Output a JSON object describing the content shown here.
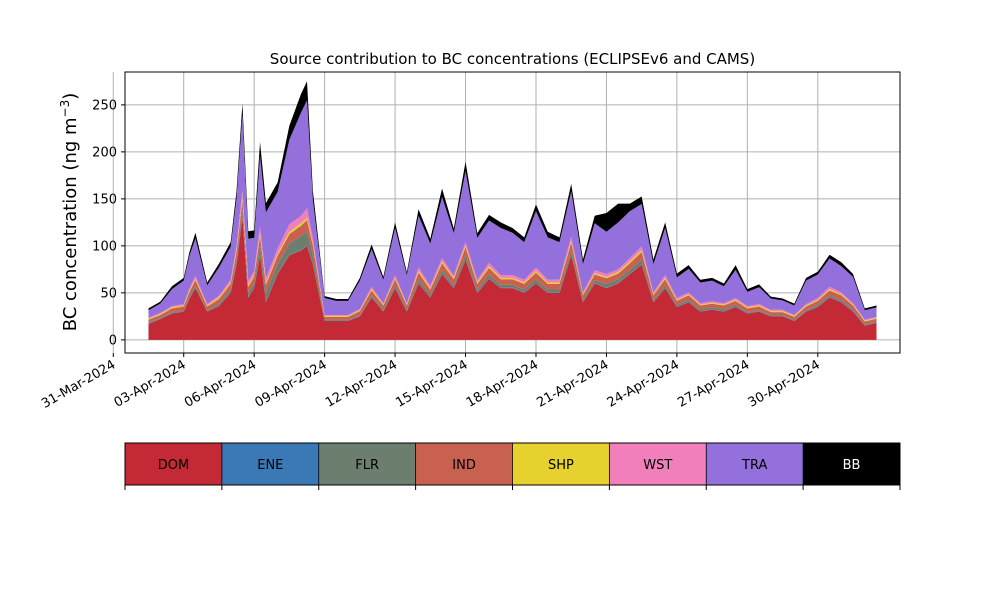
{
  "chart_data": {
    "type": "area",
    "title": "Source contribution to BC concentrations (ECLIPSEv6 and CAMS)",
    "ylabel": "BC concentration (ng m",
    "ylabel_sup": "−3",
    "ylabel_close": ")",
    "xlabel": "",
    "ylim": [
      -14,
      285
    ],
    "xlim": [
      "2024-03-31T12:00",
      "2024-05-03T12:00"
    ],
    "x_ticks": [
      "2024-03-31",
      "2024-04-03",
      "2024-04-06",
      "2024-04-09",
      "2024-04-12",
      "2024-04-15",
      "2024-04-18",
      "2024-04-21",
      "2024-04-24",
      "2024-04-27",
      "2024-04-30"
    ],
    "x_tick_labels": [
      "31-Mar-2024",
      "03-Apr-2024",
      "06-Apr-2024",
      "09-Apr-2024",
      "12-Apr-2024",
      "15-Apr-2024",
      "18-Apr-2024",
      "21-Apr-2024",
      "24-Apr-2024",
      "27-Apr-2024",
      "30-Apr-2024"
    ],
    "y_ticks": [
      0,
      50,
      100,
      150,
      200,
      250
    ],
    "grid": true,
    "legend_placement": "below",
    "x": [
      "2024-04-01T12:00",
      "2024-04-02T00:00",
      "2024-04-02T12:00",
      "2024-04-03T00:00",
      "2024-04-03T06:00",
      "2024-04-03T12:00",
      "2024-04-04T00:00",
      "2024-04-04T12:00",
      "2024-04-05T00:00",
      "2024-04-05T06:00",
      "2024-04-05T12:00",
      "2024-04-05T18:00",
      "2024-04-06T00:00",
      "2024-04-06T06:00",
      "2024-04-06T12:00",
      "2024-04-07T00:00",
      "2024-04-07T12:00",
      "2024-04-08T00:00",
      "2024-04-08T06:00",
      "2024-04-08T12:00",
      "2024-04-09T00:00",
      "2024-04-09T12:00",
      "2024-04-10T00:00",
      "2024-04-10T12:00",
      "2024-04-11T00:00",
      "2024-04-11T12:00",
      "2024-04-12T00:00",
      "2024-04-12T12:00",
      "2024-04-13T00:00",
      "2024-04-13T12:00",
      "2024-04-14T00:00",
      "2024-04-14T12:00",
      "2024-04-15T00:00",
      "2024-04-15T12:00",
      "2024-04-16T00:00",
      "2024-04-16T12:00",
      "2024-04-17T00:00",
      "2024-04-17T12:00",
      "2024-04-18T00:00",
      "2024-04-18T12:00",
      "2024-04-19T00:00",
      "2024-04-19T12:00",
      "2024-04-20T00:00",
      "2024-04-20T12:00",
      "2024-04-21T00:00",
      "2024-04-21T12:00",
      "2024-04-22T00:00",
      "2024-04-22T12:00",
      "2024-04-23T00:00",
      "2024-04-23T12:00",
      "2024-04-24T00:00",
      "2024-04-24T12:00",
      "2024-04-25T00:00",
      "2024-04-25T12:00",
      "2024-04-26T00:00",
      "2024-04-26T12:00",
      "2024-04-27T00:00",
      "2024-04-27T12:00",
      "2024-04-28T00:00",
      "2024-04-28T12:00",
      "2024-04-29T00:00",
      "2024-04-29T12:00",
      "2024-04-30T00:00",
      "2024-04-30T12:00",
      "2024-05-01T00:00",
      "2024-05-01T12:00",
      "2024-05-02T00:00",
      "2024-05-02T12:00"
    ],
    "series": [
      {
        "name": "DOM",
        "color": "#c32a35",
        "values": [
          17,
          22,
          28,
          30,
          44,
          55,
          30,
          36,
          50,
          80,
          130,
          45,
          55,
          90,
          40,
          70,
          90,
          95,
          100,
          80,
          20,
          20,
          20,
          25,
          45,
          30,
          55,
          30,
          60,
          45,
          70,
          55,
          85,
          50,
          65,
          55,
          55,
          50,
          60,
          50,
          50,
          90,
          40,
          60,
          55,
          60,
          70,
          80,
          40,
          55,
          35,
          40,
          30,
          32,
          30,
          35,
          28,
          30,
          25,
          25,
          20,
          30,
          35,
          45,
          40,
          30,
          15,
          18
        ]
      },
      {
        "name": "ENE",
        "color": "#3a79b5",
        "values": [
          0.5,
          0.5,
          0.5,
          0.5,
          0.5,
          0.5,
          0.5,
          0.5,
          0.5,
          0.5,
          0.5,
          0.5,
          0.5,
          0.5,
          0.5,
          0.5,
          0.5,
          0.5,
          0.5,
          0.5,
          0.5,
          0.5,
          0.5,
          0.5,
          0.5,
          0.5,
          0.5,
          0.5,
          0.5,
          0.5,
          0.5,
          0.5,
          0.5,
          0.5,
          0.5,
          0.5,
          0.5,
          0.5,
          0.5,
          0.5,
          0.5,
          0.5,
          0.5,
          0.5,
          0.5,
          0.5,
          0.5,
          0.5,
          0.5,
          0.5,
          0.5,
          0.5,
          0.5,
          0.5,
          0.5,
          0.5,
          0.5,
          0.5,
          0.5,
          0.5,
          0.5,
          0.5,
          0.5,
          0.5,
          0.5,
          0.5,
          0.5,
          0.5
        ]
      },
      {
        "name": "FLR",
        "color": "#6c7f6e",
        "values": [
          1,
          1,
          1,
          1,
          2,
          2,
          1,
          2,
          3,
          5,
          8,
          5,
          5,
          10,
          10,
          10,
          12,
          15,
          15,
          10,
          1,
          1,
          1,
          1,
          2,
          2,
          3,
          2,
          4,
          3,
          4,
          3,
          5,
          3,
          4,
          3,
          3,
          3,
          4,
          3,
          3,
          5,
          2,
          3,
          4,
          4,
          4,
          5,
          2,
          3,
          2,
          2,
          2,
          2,
          2,
          2,
          1,
          1,
          1,
          1,
          1,
          1,
          2,
          2,
          2,
          2,
          1,
          1
        ]
      },
      {
        "name": "IND",
        "color": "#c8614f",
        "values": [
          3,
          3,
          4,
          4,
          5,
          6,
          4,
          5,
          6,
          8,
          10,
          6,
          7,
          10,
          8,
          9,
          10,
          11,
          12,
          10,
          3,
          3,
          3,
          4,
          5,
          4,
          6,
          4,
          7,
          5,
          7,
          6,
          8,
          6,
          7,
          6,
          6,
          6,
          7,
          6,
          6,
          8,
          5,
          6,
          6,
          6,
          7,
          8,
          5,
          6,
          4,
          5,
          4,
          4,
          4,
          4,
          4,
          4,
          3,
          3,
          3,
          4,
          4,
          5,
          5,
          4,
          3,
          3
        ]
      },
      {
        "name": "SHP",
        "color": "#e6d12e",
        "values": [
          1,
          1,
          1,
          1,
          1.5,
          1.5,
          1,
          1.5,
          1.5,
          2,
          3,
          2,
          2,
          3,
          2,
          2,
          2.5,
          2.5,
          2.5,
          2,
          1,
          1,
          1,
          1,
          1.5,
          1,
          1.5,
          1,
          2,
          1.5,
          2,
          1.5,
          2,
          1.5,
          2,
          1.5,
          1.5,
          1.5,
          2,
          1.5,
          1.5,
          2,
          1,
          1.5,
          1.5,
          1.5,
          2,
          2,
          1,
          1.5,
          1,
          1,
          1,
          1,
          1,
          1,
          1,
          1,
          1,
          1,
          1,
          1,
          1,
          1.5,
          1,
          1,
          1,
          1
        ]
      },
      {
        "name": "WST",
        "color": "#f07fbc",
        "values": [
          1,
          1,
          1.5,
          1.5,
          2,
          3,
          1.5,
          2,
          3,
          5,
          8,
          4,
          4,
          7,
          5,
          6,
          8,
          8,
          10,
          6,
          1,
          1,
          1,
          1.5,
          2.5,
          1.5,
          3,
          1.5,
          3.5,
          2.5,
          3.5,
          2.5,
          4,
          2.5,
          3.5,
          3,
          3,
          3,
          3.5,
          3,
          3,
          4.5,
          2,
          3,
          3,
          3,
          3.5,
          4,
          2,
          3,
          2,
          2,
          1.5,
          1.5,
          1.5,
          2,
          1.5,
          1.5,
          1.5,
          1.5,
          1,
          1.5,
          2,
          2.5,
          2,
          1.5,
          1,
          1
        ]
      },
      {
        "name": "TRA",
        "color": "#9370db",
        "values": [
          8,
          10,
          18,
          25,
          35,
          40,
          20,
          30,
          35,
          50,
          80,
          45,
          35,
          75,
          70,
          60,
          90,
          110,
          115,
          40,
          18,
          15,
          15,
          30,
          40,
          25,
          50,
          30,
          55,
          45,
          65,
          45,
          75,
          45,
          45,
          50,
          45,
          40,
          60,
          45,
          40,
          48,
          30,
          50,
          45,
          50,
          50,
          45,
          30,
          50,
          22,
          25,
          22,
          22,
          18,
          30,
          15,
          18,
          12,
          10,
          10,
          25,
          25,
          30,
          28,
          28,
          10,
          10
        ]
      },
      {
        "name": "BB",
        "color": "#000000",
        "values": [
          2,
          2,
          3,
          3,
          4,
          6,
          3,
          4,
          5,
          8,
          12,
          8,
          8,
          15,
          10,
          10,
          15,
          20,
          20,
          10,
          2,
          2,
          2,
          3,
          5,
          3,
          6,
          3,
          7,
          5,
          9,
          5,
          10,
          5,
          6,
          6,
          5,
          5,
          7,
          6,
          5,
          8,
          5,
          8,
          20,
          20,
          8,
          8,
          5,
          6,
          4,
          4,
          3,
          3,
          3,
          5,
          3,
          3,
          2,
          2,
          2,
          3,
          3,
          4,
          4,
          3,
          2,
          2
        ]
      }
    ]
  }
}
